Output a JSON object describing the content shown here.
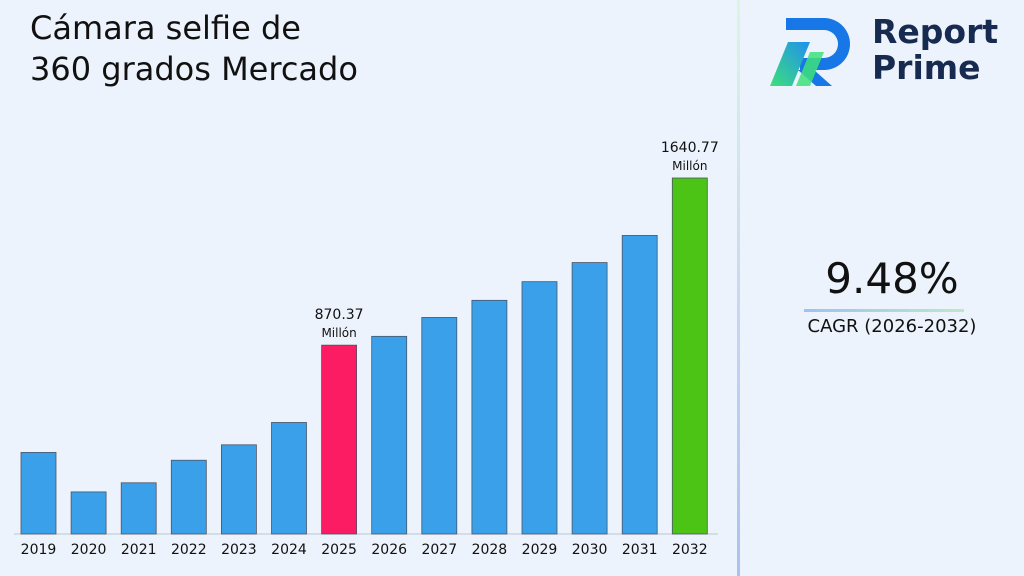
{
  "chart_data": {
    "type": "bar",
    "title": "Cámara selfie de 360 grados Mercado",
    "categories": [
      "2019",
      "2020",
      "2021",
      "2022",
      "2023",
      "2024",
      "2025",
      "2026",
      "2027",
      "2028",
      "2029",
      "2030",
      "2031",
      "2032"
    ],
    "values": [
      376,
      194,
      236,
      340,
      411,
      514,
      870.37,
      911,
      998,
      1077,
      1163,
      1251,
      1376,
      1640.77
    ],
    "highlight": {
      "2025": "#fc1c64",
      "2032": "#4cc416"
    },
    "bar_color": "#3aa0ea",
    "data_labels": [
      {
        "category": "2025",
        "value": "870.37",
        "unit": "Millón"
      },
      {
        "category": "2032",
        "value": "1640.77",
        "unit": "Millón"
      }
    ],
    "xlabel": "",
    "ylabel": "",
    "ylim": [
      0,
      1640.77
    ],
    "grid": false,
    "legend": "none"
  },
  "brand": {
    "line1": "Report",
    "line2": "Prime"
  },
  "cagr": {
    "value": "9.48%",
    "label": "CAGR (2026-2032)"
  }
}
